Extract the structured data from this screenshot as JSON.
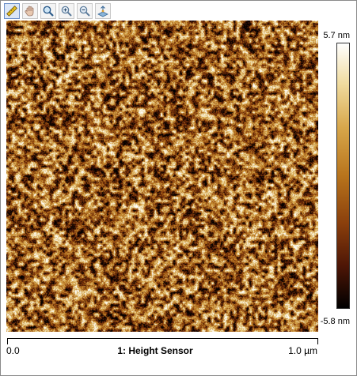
{
  "toolbar": {
    "tools": [
      {
        "name": "ruler-tool",
        "icon": "ruler-icon",
        "active": true
      },
      {
        "name": "pan-tool",
        "icon": "hand-icon",
        "active": false
      },
      {
        "name": "magnify-tool",
        "icon": "magnifier-icon",
        "active": false
      },
      {
        "name": "zoom-in-tool",
        "icon": "zoom-in-icon",
        "active": false
      },
      {
        "name": "zoom-out-tool",
        "icon": "zoom-out-icon",
        "active": false
      },
      {
        "name": "3d-view-tool",
        "icon": "3d-view-icon",
        "active": false
      }
    ]
  },
  "image": {
    "channel_label": "1: Height Sensor",
    "x_min_label": "0.0",
    "x_max_label": "1.0 µm"
  },
  "colorbar": {
    "max_label": "5.7 nm",
    "min_label": "-5.8 nm",
    "colors": [
      "#ffffff",
      "#f0dca0",
      "#d7a64a",
      "#b8741c",
      "#8a3f0c",
      "#4e1606",
      "#000000"
    ]
  }
}
